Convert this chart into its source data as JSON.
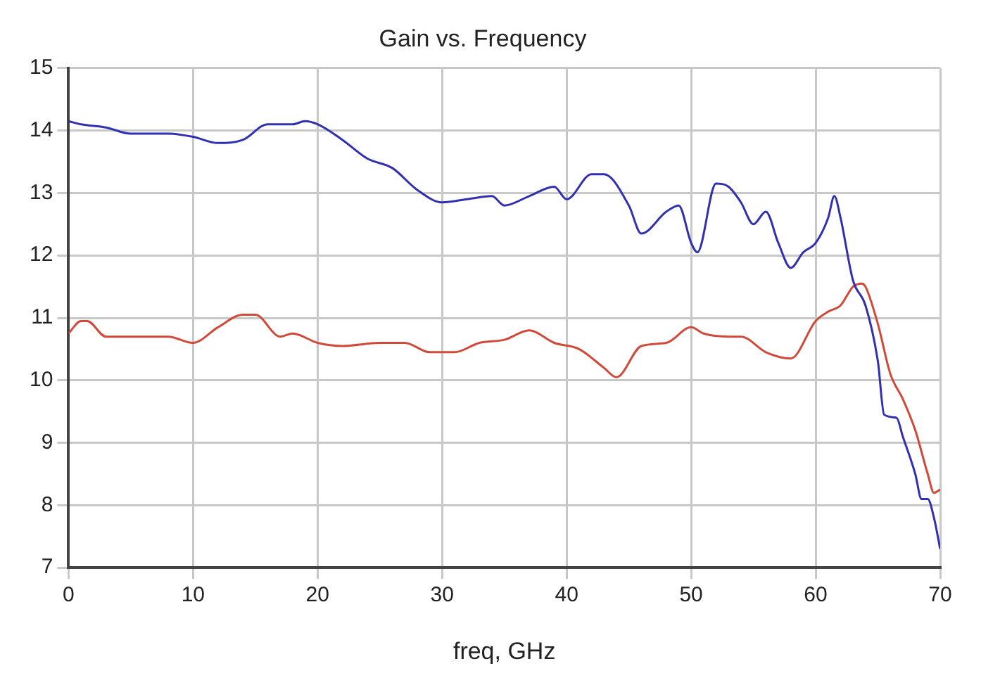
{
  "chart_data": {
    "type": "line",
    "title": "Gain vs. Frequency",
    "xlabel": "freq, GHz",
    "xlim": [
      0,
      70
    ],
    "xticks": [
      0,
      10,
      20,
      30,
      40,
      50,
      60,
      70
    ],
    "ylim": [
      7,
      15
    ],
    "yticks": [
      7,
      8,
      9,
      10,
      11,
      12,
      13,
      14,
      15
    ],
    "grid": true,
    "legend": false,
    "marker": "none",
    "line_style": "solid",
    "series": [
      {
        "color": "#3030b0",
        "x": [
          0,
          1,
          3,
          5,
          8,
          10,
          12,
          14,
          16,
          18,
          19,
          20,
          22,
          24,
          26,
          28,
          30,
          32,
          34,
          35,
          37,
          39,
          40,
          42,
          43,
          45,
          46,
          48,
          49,
          50,
          50.5,
          52,
          53,
          54,
          55,
          56,
          57,
          58,
          59,
          60,
          61,
          61.5,
          62,
          63,
          64,
          65,
          65.5,
          66.5,
          67,
          68,
          68.5,
          69,
          69.5,
          70
        ],
        "values": [
          14.15,
          14.1,
          14.05,
          13.95,
          13.95,
          13.9,
          13.8,
          13.85,
          14.1,
          14.1,
          14.15,
          14.1,
          13.85,
          13.55,
          13.4,
          13.05,
          12.85,
          12.9,
          12.95,
          12.8,
          12.95,
          13.1,
          12.9,
          13.3,
          13.3,
          12.8,
          12.35,
          12.7,
          12.8,
          12.2,
          12.05,
          13.15,
          13.1,
          12.85,
          12.5,
          12.7,
          12.2,
          11.8,
          12.05,
          12.2,
          12.6,
          12.95,
          12.6,
          11.6,
          11.2,
          10.3,
          9.45,
          9.4,
          9.1,
          8.5,
          8.1,
          8.1,
          7.8,
          7.3
        ]
      },
      {
        "color": "#d04a3a",
        "x": [
          0,
          1,
          1.5,
          3,
          6,
          8,
          10,
          12,
          14,
          15,
          17,
          18,
          20,
          22,
          25,
          27,
          29,
          31,
          33,
          35,
          37,
          39,
          41,
          43,
          44,
          46,
          48,
          50,
          51,
          53,
          54,
          56,
          58,
          60,
          61,
          62,
          63,
          63.7,
          64,
          65,
          66,
          67,
          68,
          69,
          69.5,
          70
        ],
        "values": [
          10.75,
          10.95,
          10.95,
          10.7,
          10.7,
          10.7,
          10.6,
          10.85,
          11.05,
          11.05,
          10.7,
          10.75,
          10.6,
          10.55,
          10.6,
          10.6,
          10.45,
          10.45,
          10.6,
          10.65,
          10.8,
          10.6,
          10.5,
          10.2,
          10.05,
          10.55,
          10.6,
          10.85,
          10.75,
          10.7,
          10.7,
          10.45,
          10.35,
          10.95,
          11.1,
          11.2,
          11.5,
          11.55,
          11.5,
          10.9,
          10.1,
          9.7,
          9.2,
          8.5,
          8.2,
          8.25
        ]
      }
    ]
  }
}
